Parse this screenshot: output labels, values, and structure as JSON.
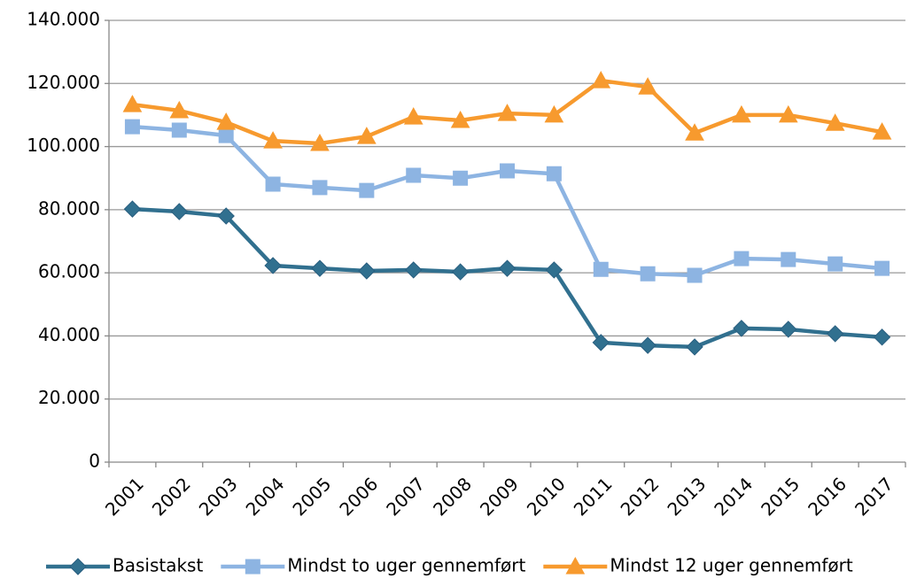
{
  "chart_data": {
    "type": "line",
    "categories": [
      "2001",
      "2002",
      "2003",
      "2004",
      "2005",
      "2006",
      "2007",
      "2008",
      "2009",
      "2010",
      "2011",
      "2012",
      "2013",
      "2014",
      "2015",
      "2016",
      "2017"
    ],
    "series": [
      {
        "name": "Basistakst",
        "color": "#31708f",
        "marker": "diamond",
        "values": [
          80200,
          79400,
          78000,
          62300,
          61400,
          60600,
          60900,
          60300,
          61400,
          60900,
          37900,
          37000,
          36500,
          42400,
          42100,
          40700,
          39600
        ]
      },
      {
        "name": "Mindst to uger gennemført",
        "color": "#8db4e2",
        "marker": "square",
        "values": [
          106300,
          105200,
          103500,
          88100,
          87000,
          86100,
          90900,
          90000,
          92300,
          91400,
          61100,
          59700,
          59200,
          64500,
          64200,
          62800,
          61400
        ]
      },
      {
        "name": "Mindst 12 uger gennemført",
        "color": "#f79a2e",
        "marker": "triangle",
        "values": [
          113300,
          111400,
          107700,
          101800,
          101000,
          103200,
          109400,
          108300,
          110500,
          110000,
          120900,
          118900,
          104300,
          110000,
          110000,
          107400,
          104600
        ]
      }
    ],
    "ylim": [
      0,
      140000
    ],
    "yticks": [
      0,
      {
        "value": 20000,
        "label": "20.000"
      },
      {
        "value": 40000,
        "label": "40.000"
      },
      {
        "value": 60000,
        "label": "60.000"
      },
      {
        "value": 80000,
        "label": "80.000"
      },
      {
        "value": 100000,
        "label": "100.000"
      },
      {
        "value": 120000,
        "label": "120.000"
      },
      {
        "value": 140000,
        "label": "140.000"
      }
    ],
    "grid": true,
    "legend": "bottom"
  }
}
